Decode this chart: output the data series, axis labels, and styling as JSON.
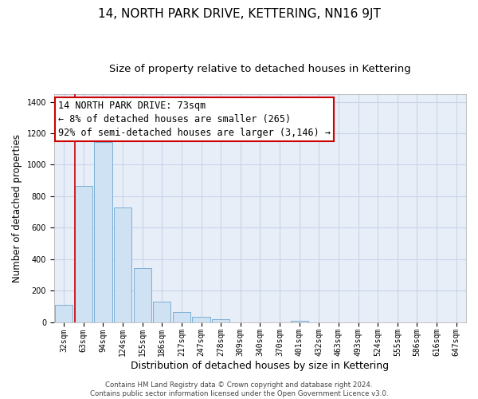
{
  "title": "14, NORTH PARK DRIVE, KETTERING, NN16 9JT",
  "subtitle": "Size of property relative to detached houses in Kettering",
  "xlabel": "Distribution of detached houses by size in Kettering",
  "ylabel": "Number of detached properties",
  "bar_labels": [
    "32sqm",
    "63sqm",
    "94sqm",
    "124sqm",
    "155sqm",
    "186sqm",
    "217sqm",
    "247sqm",
    "278sqm",
    "309sqm",
    "340sqm",
    "370sqm",
    "401sqm",
    "432sqm",
    "463sqm",
    "493sqm",
    "524sqm",
    "555sqm",
    "586sqm",
    "616sqm",
    "647sqm"
  ],
  "bar_values": [
    107,
    863,
    1145,
    730,
    345,
    130,
    62,
    33,
    20,
    0,
    0,
    0,
    8,
    0,
    0,
    0,
    0,
    0,
    0,
    0,
    0
  ],
  "bar_color": "#cfe2f3",
  "bar_edge_color": "#7bafd4",
  "annotation_text": "14 NORTH PARK DRIVE: 73sqm\n← 8% of detached houses are smaller (265)\n92% of semi-detached houses are larger (3,146) →",
  "annotation_box_color": "#ffffff",
  "annotation_box_edge_color": "#cc0000",
  "ylim": [
    0,
    1450
  ],
  "yticks": [
    0,
    200,
    400,
    600,
    800,
    1000,
    1200,
    1400
  ],
  "footnote": "Contains HM Land Registry data © Crown copyright and database right 2024.\nContains public sector information licensed under the Open Government Licence v3.0.",
  "bg_color": "#e8eef8",
  "grid_color": "#c8d4e8",
  "title_fontsize": 11,
  "subtitle_fontsize": 9.5,
  "xlabel_fontsize": 9,
  "ylabel_fontsize": 8.5,
  "tick_fontsize": 7,
  "annotation_fontsize": 8.5,
  "footnote_fontsize": 6.2
}
